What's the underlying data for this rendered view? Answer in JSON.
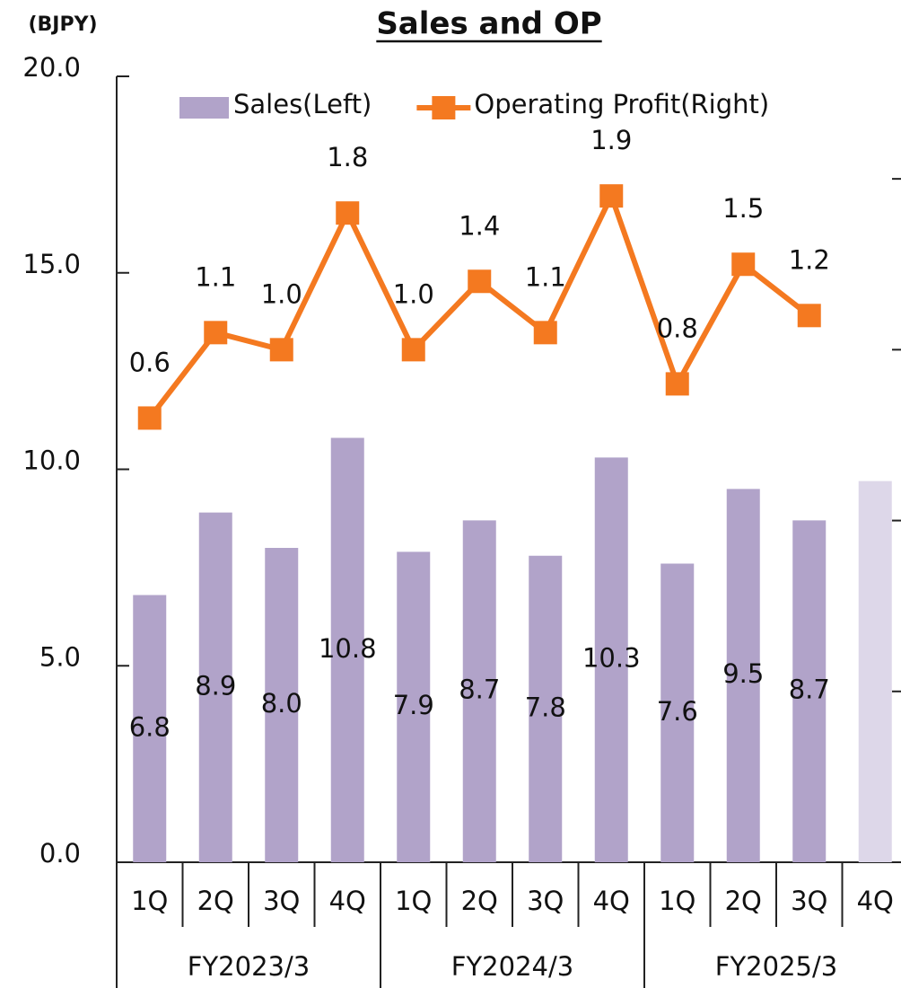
{
  "chart_data": {
    "type": "bar-line",
    "title": "Sales and OP",
    "unit_label": "(BJPY)",
    "categories": [
      "1Q",
      "2Q",
      "3Q",
      "4Q",
      "1Q",
      "2Q",
      "3Q",
      "4Q",
      "1Q",
      "2Q",
      "3Q",
      "4Q"
    ],
    "groups": [
      "FY2023/3",
      "FY2024/3",
      "FY2025/3"
    ],
    "series": [
      {
        "name": "Sales(Left)",
        "type": "bar",
        "color": "#b1a3c9",
        "colors": [
          "#b1a3c9",
          "#b1a3c9",
          "#b1a3c9",
          "#b1a3c9",
          "#b1a3c9",
          "#b1a3c9",
          "#b1a3c9",
          "#b1a3c9",
          "#b1a3c9",
          "#b1a3c9",
          "#b1a3c9",
          "#ddd7e9"
        ],
        "values": [
          6.8,
          8.9,
          8.0,
          10.8,
          7.9,
          8.7,
          7.8,
          10.3,
          7.6,
          9.5,
          8.7,
          9.7
        ],
        "value_labels": [
          "6.8",
          "8.9",
          "8.0",
          "10.8",
          "7.9",
          "8.7",
          "7.8",
          "10.3",
          "7.6",
          "9.5",
          "8.7",
          null
        ]
      },
      {
        "name": "Operating Profit(Right)",
        "type": "line",
        "axis": "y2",
        "color": "#f47920",
        "values": [
          0.6,
          1.1,
          1.0,
          1.8,
          1.0,
          1.4,
          1.1,
          1.9,
          0.8,
          1.5,
          1.2,
          null
        ],
        "value_labels": [
          "0.6",
          "1.1",
          "1.0",
          "1.8",
          "1.0",
          "1.4",
          "1.1",
          "1.9",
          "0.8",
          "1.5",
          "1.2",
          null
        ]
      }
    ],
    "ylim": [
      0,
      20
    ],
    "yticks": [
      {
        "value": 0,
        "label": "0.0"
      },
      {
        "value": 5,
        "label": "5.0"
      },
      {
        "value": 10,
        "label": "10.0"
      },
      {
        "value": 15,
        "label": "15.0"
      },
      {
        "value": 20,
        "label": "20.0"
      }
    ],
    "y2lim": [
      -2,
      2.6
    ],
    "y2ticks": [
      -2,
      -1,
      0,
      1,
      2
    ],
    "legend": "top"
  }
}
